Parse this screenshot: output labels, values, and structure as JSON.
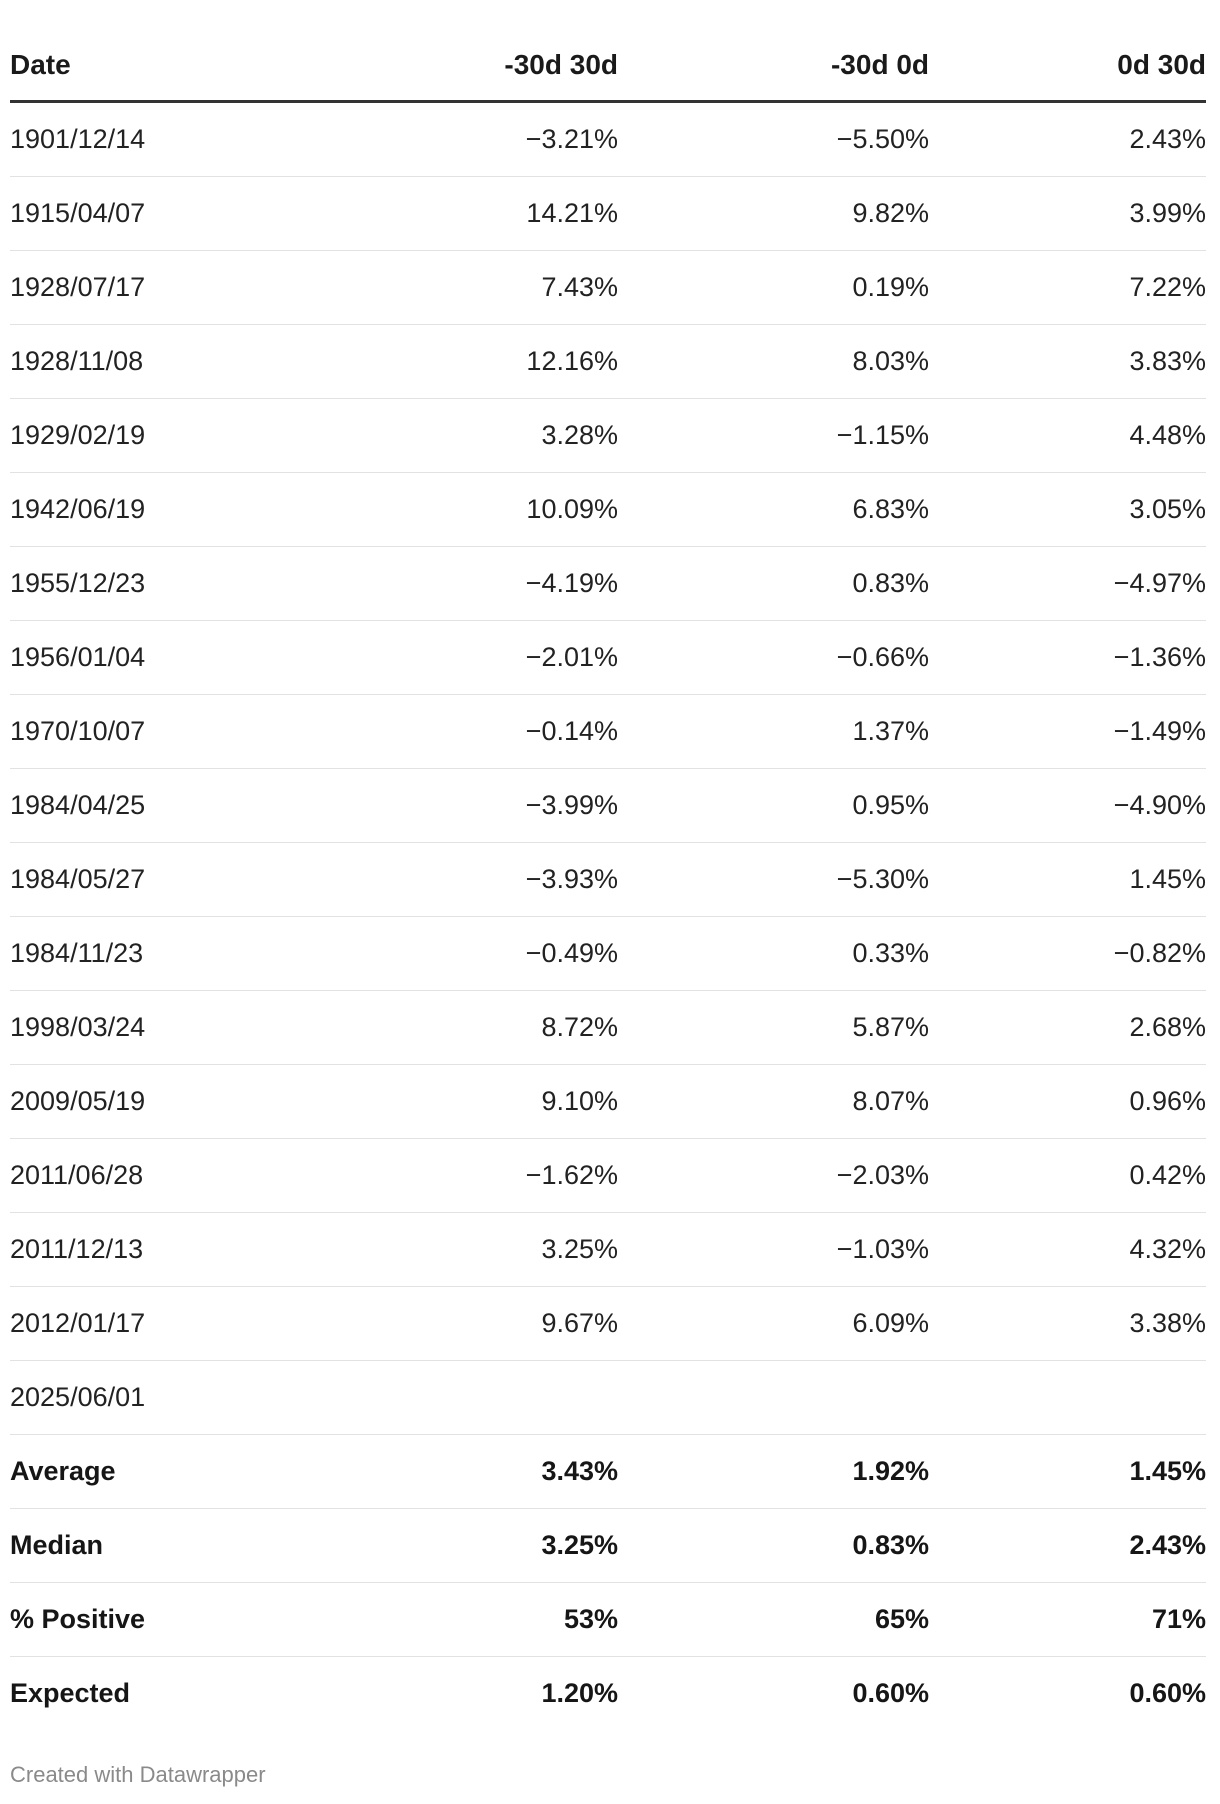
{
  "chart_data": {
    "type": "table",
    "columns": [
      "Date",
      "-30d 30d",
      "-30d 0d",
      "0d 30d"
    ],
    "rows": [
      [
        "1901/12/14",
        "−3.21%",
        "−5.50%",
        "2.43%"
      ],
      [
        "1915/04/07",
        "14.21%",
        "9.82%",
        "3.99%"
      ],
      [
        "1928/07/17",
        "7.43%",
        "0.19%",
        "7.22%"
      ],
      [
        "1928/11/08",
        "12.16%",
        "8.03%",
        "3.83%"
      ],
      [
        "1929/02/19",
        "3.28%",
        "−1.15%",
        "4.48%"
      ],
      [
        "1942/06/19",
        "10.09%",
        "6.83%",
        "3.05%"
      ],
      [
        "1955/12/23",
        "−4.19%",
        "0.83%",
        "−4.97%"
      ],
      [
        "1956/01/04",
        "−2.01%",
        "−0.66%",
        "−1.36%"
      ],
      [
        "1970/10/07",
        "−0.14%",
        "1.37%",
        "−1.49%"
      ],
      [
        "1984/04/25",
        "−3.99%",
        "0.95%",
        "−4.90%"
      ],
      [
        "1984/05/27",
        "−3.93%",
        "−5.30%",
        "1.45%"
      ],
      [
        "1984/11/23",
        "−0.49%",
        "0.33%",
        "−0.82%"
      ],
      [
        "1998/03/24",
        "8.72%",
        "5.87%",
        "2.68%"
      ],
      [
        "2009/05/19",
        "9.10%",
        "8.07%",
        "0.96%"
      ],
      [
        "2011/06/28",
        "−1.62%",
        "−2.03%",
        "0.42%"
      ],
      [
        "2011/12/13",
        "3.25%",
        "−1.03%",
        "4.32%"
      ],
      [
        "2012/01/17",
        "9.67%",
        "6.09%",
        "3.38%"
      ],
      [
        "2025/06/01",
        "",
        "",
        ""
      ]
    ],
    "summary_rows": [
      [
        "Average",
        "3.43%",
        "1.92%",
        "1.45%"
      ],
      [
        "Median",
        "3.25%",
        "0.83%",
        "2.43%"
      ],
      [
        "% Positive",
        "53%",
        "65%",
        "71%"
      ],
      [
        "Expected",
        "1.20%",
        "0.60%",
        "0.60%"
      ]
    ]
  },
  "footer": {
    "credit": "Created with Datawrapper"
  }
}
